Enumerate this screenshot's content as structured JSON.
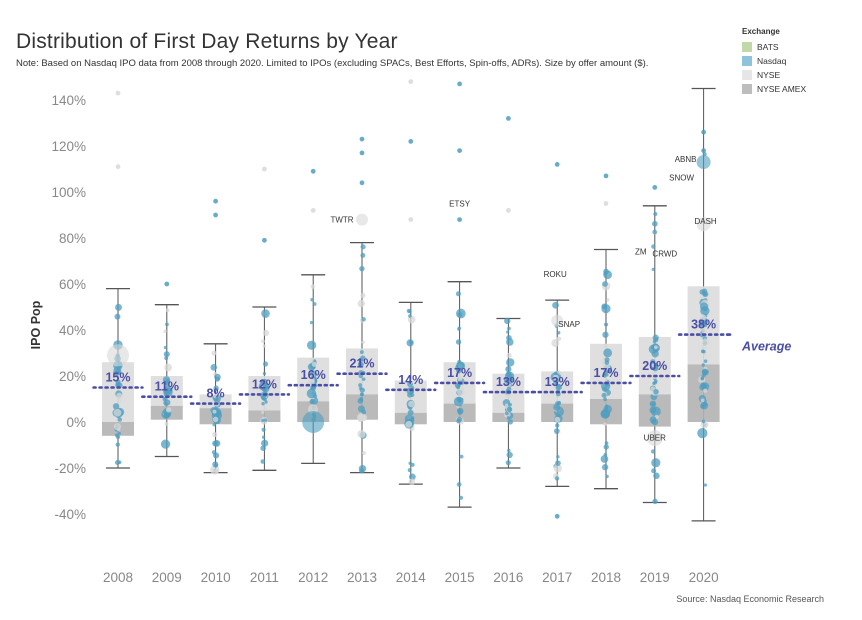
{
  "header": {
    "title": "Distribution of First Day Returns by Year",
    "note": "Note: Based on Nasdaq IPO data from 2008 through 2020. Limited to IPOs (excluding SPACs, Best Efforts, Spin-offs, ADRs). Size by offer amount ($).",
    "source": "Source: Nasdaq Economic Research"
  },
  "legend": {
    "title": "Exchange",
    "items": [
      {
        "label": "BATS",
        "color": "#c2d8a8"
      },
      {
        "label": "Nasdaq",
        "color": "#8fc3dc"
      },
      {
        "label": "NYSE",
        "color": "#e6e6e6"
      },
      {
        "label": "NYSE AMEX",
        "color": "#bdbdbd"
      }
    ]
  },
  "colors": {
    "nasdaq_point": "#4f9ec0",
    "nyse_point": "#d8d8d8",
    "box_upper": "#dcdcdc",
    "box_lower": "#b3b3b3",
    "whisker": "#555555",
    "average": "#4b4ea6"
  },
  "chart_data": {
    "type": "box",
    "title": "Distribution of First Day Returns by Year",
    "ylabel": "IPO Pop",
    "xlabel": "",
    "ylim": [
      -0.55,
      1.5
    ],
    "yticks": [
      -0.4,
      -0.2,
      0,
      0.2,
      0.4,
      0.6,
      0.8,
      1.0,
      1.2,
      1.4
    ],
    "ytick_labels": [
      "-40%",
      "-20%",
      "0%",
      "20%",
      "40%",
      "60%",
      "80%",
      "100%",
      "120%",
      "140%"
    ],
    "categories": [
      "2008",
      "2009",
      "2010",
      "2011",
      "2012",
      "2013",
      "2014",
      "2015",
      "2016",
      "2017",
      "2018",
      "2019",
      "2020"
    ],
    "average_label": "Average",
    "series": [
      {
        "year": "2008",
        "whisker_low": -0.2,
        "q1": -0.06,
        "median": 0.0,
        "q3": 0.26,
        "whisker_high": 0.58,
        "average": 0.15,
        "average_label": "15%"
      },
      {
        "year": "2009",
        "whisker_low": -0.15,
        "q1": 0.01,
        "median": 0.07,
        "q3": 0.2,
        "whisker_high": 0.51,
        "average": 0.11,
        "average_label": "11%"
      },
      {
        "year": "2010",
        "whisker_low": -0.22,
        "q1": -0.01,
        "median": 0.06,
        "q3": 0.12,
        "whisker_high": 0.34,
        "average": 0.08,
        "average_label": "8%"
      },
      {
        "year": "2011",
        "whisker_low": -0.21,
        "q1": 0.0,
        "median": 0.05,
        "q3": 0.2,
        "whisker_high": 0.5,
        "average": 0.12,
        "average_label": "12%"
      },
      {
        "year": "2012",
        "whisker_low": -0.18,
        "q1": 0.0,
        "median": 0.09,
        "q3": 0.28,
        "whisker_high": 0.64,
        "average": 0.16,
        "average_label": "16%"
      },
      {
        "year": "2013",
        "whisker_low": -0.22,
        "q1": 0.01,
        "median": 0.12,
        "q3": 0.32,
        "whisker_high": 0.78,
        "average": 0.21,
        "average_label": "21%"
      },
      {
        "year": "2014",
        "whisker_low": -0.27,
        "q1": -0.01,
        "median": 0.04,
        "q3": 0.18,
        "whisker_high": 0.52,
        "average": 0.14,
        "average_label": "14%"
      },
      {
        "year": "2015",
        "whisker_low": -0.37,
        "q1": 0.0,
        "median": 0.08,
        "q3": 0.26,
        "whisker_high": 0.61,
        "average": 0.17,
        "average_label": "17%"
      },
      {
        "year": "2016",
        "whisker_low": -0.2,
        "q1": 0.0,
        "median": 0.04,
        "q3": 0.21,
        "whisker_high": 0.45,
        "average": 0.13,
        "average_label": "13%"
      },
      {
        "year": "2017",
        "whisker_low": -0.28,
        "q1": 0.0,
        "median": 0.08,
        "q3": 0.22,
        "whisker_high": 0.53,
        "average": 0.13,
        "average_label": "13%"
      },
      {
        "year": "2018",
        "whisker_low": -0.29,
        "q1": -0.01,
        "median": 0.1,
        "q3": 0.34,
        "whisker_high": 0.75,
        "average": 0.17,
        "average_label": "17%"
      },
      {
        "year": "2019",
        "whisker_low": -0.35,
        "q1": -0.02,
        "median": 0.12,
        "q3": 0.37,
        "whisker_high": 0.94,
        "average": 0.2,
        "average_label": "20%"
      },
      {
        "year": "2020",
        "whisker_low": -0.43,
        "q1": 0.0,
        "median": 0.25,
        "q3": 0.59,
        "whisker_high": 1.45,
        "average": 0.38,
        "average_label": "38%"
      }
    ],
    "annotations": [
      {
        "label": "TWTR",
        "year": "2013",
        "y": 0.88
      },
      {
        "label": "ETSY",
        "year": "2015",
        "y": 0.92
      },
      {
        "label": "ROKU",
        "year": "2017",
        "y": 0.63
      },
      {
        "label": "SNAP",
        "year": "2017",
        "y": 0.43
      },
      {
        "label": "ZM",
        "year": "2019",
        "y": 0.72
      },
      {
        "label": "CRWD",
        "year": "2019",
        "y": 0.71
      },
      {
        "label": "UBER",
        "year": "2019",
        "y": -0.08
      },
      {
        "label": "ABNB",
        "year": "2020",
        "y": 1.13
      },
      {
        "label": "SNOW",
        "year": "2020",
        "y": 1.05
      },
      {
        "label": "DASH",
        "year": "2020",
        "y": 0.86
      }
    ],
    "outlier_points": [
      {
        "year": "2008",
        "y": 1.43,
        "exchange": "NYSE"
      },
      {
        "year": "2008",
        "y": 1.11,
        "exchange": "NYSE"
      },
      {
        "year": "2009",
        "y": 0.6,
        "exchange": "Nasdaq"
      },
      {
        "year": "2010",
        "y": 0.96,
        "exchange": "Nasdaq"
      },
      {
        "year": "2010",
        "y": 0.9,
        "exchange": "Nasdaq"
      },
      {
        "year": "2011",
        "y": 1.1,
        "exchange": "NYSE"
      },
      {
        "year": "2011",
        "y": 0.79,
        "exchange": "Nasdaq"
      },
      {
        "year": "2012",
        "y": 1.09,
        "exchange": "Nasdaq"
      },
      {
        "year": "2012",
        "y": 0.92,
        "exchange": "NYSE"
      },
      {
        "year": "2013",
        "y": 1.23,
        "exchange": "Nasdaq"
      },
      {
        "year": "2013",
        "y": 1.17,
        "exchange": "Nasdaq"
      },
      {
        "year": "2013",
        "y": 1.04,
        "exchange": "Nasdaq"
      },
      {
        "year": "2014",
        "y": 1.48,
        "exchange": "NYSE"
      },
      {
        "year": "2014",
        "y": 1.22,
        "exchange": "Nasdaq"
      },
      {
        "year": "2014",
        "y": 0.88,
        "exchange": "NYSE"
      },
      {
        "year": "2015",
        "y": 1.47,
        "exchange": "Nasdaq"
      },
      {
        "year": "2015",
        "y": 1.18,
        "exchange": "Nasdaq"
      },
      {
        "year": "2015",
        "y": 0.88,
        "exchange": "Nasdaq"
      },
      {
        "year": "2016",
        "y": 1.32,
        "exchange": "Nasdaq"
      },
      {
        "year": "2016",
        "y": 0.92,
        "exchange": "NYSE"
      },
      {
        "year": "2017",
        "y": 1.12,
        "exchange": "Nasdaq"
      },
      {
        "year": "2017",
        "y": -0.41,
        "exchange": "Nasdaq"
      },
      {
        "year": "2018",
        "y": 1.07,
        "exchange": "Nasdaq"
      },
      {
        "year": "2018",
        "y": 0.95,
        "exchange": "NYSE"
      },
      {
        "year": "2019",
        "y": 1.02,
        "exchange": "Nasdaq"
      },
      {
        "year": "2020",
        "y": 1.26,
        "exchange": "Nasdaq"
      },
      {
        "year": "2020",
        "y": 1.18,
        "exchange": "Nasdaq"
      }
    ]
  }
}
